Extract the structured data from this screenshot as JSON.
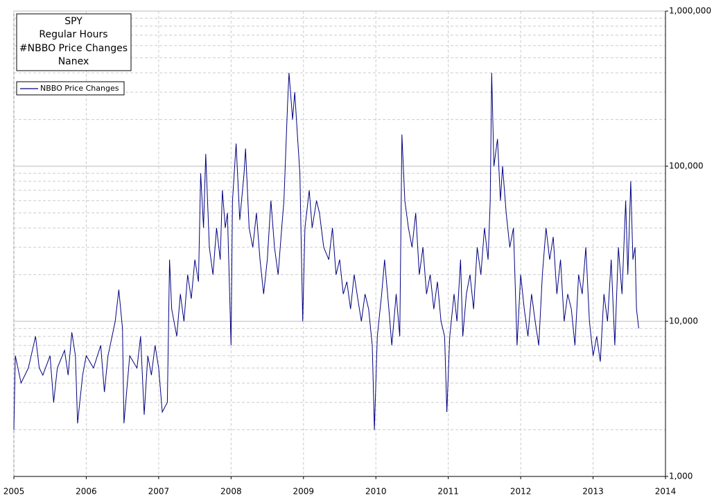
{
  "chart_data": {
    "type": "line",
    "title_lines": [
      "SPY",
      "Regular Hours",
      "#NBBO Price Changes",
      "Nanex"
    ],
    "log_y": true,
    "grid": true,
    "xlim": [
      2005,
      2014
    ],
    "xticks": [
      2005,
      2006,
      2007,
      2008,
      2009,
      2010,
      2011,
      2012,
      2013,
      2014
    ],
    "ylim": [
      1000,
      1000000
    ],
    "yticks": [
      {
        "value": 1000,
        "label": "1,000"
      },
      {
        "value": 10000,
        "label": "10,000"
      },
      {
        "value": 100000,
        "label": "100,000"
      },
      {
        "value": 1000000,
        "label": "1,000,000"
      }
    ],
    "y_minor_ticks": [
      2000,
      3000,
      4000,
      5000,
      6000,
      7000,
      8000,
      9000,
      20000,
      30000,
      40000,
      50000,
      60000,
      70000,
      80000,
      90000,
      200000,
      300000,
      400000,
      500000,
      600000,
      700000,
      800000,
      900000
    ],
    "legend": "top-left",
    "series": [
      {
        "name": "NBBO Price Changes",
        "color": "#000080",
        "x": [
          2005.0,
          2005.02,
          2005.1,
          2005.2,
          2005.3,
          2005.35,
          2005.4,
          2005.5,
          2005.55,
          2005.6,
          2005.7,
          2005.75,
          2005.8,
          2005.85,
          2005.88,
          2005.95,
          2006.0,
          2006.1,
          2006.2,
          2006.25,
          2006.3,
          2006.4,
          2006.45,
          2006.5,
          2006.52,
          2006.6,
          2006.7,
          2006.75,
          2006.8,
          2006.85,
          2006.9,
          2006.95,
          2007.0,
          2007.05,
          2007.12,
          2007.15,
          2007.18,
          2007.25,
          2007.3,
          2007.35,
          2007.4,
          2007.45,
          2007.5,
          2007.55,
          2007.58,
          2007.62,
          2007.65,
          2007.7,
          2007.75,
          2007.8,
          2007.85,
          2007.88,
          2007.92,
          2007.95,
          2008.0,
          2008.02,
          2008.07,
          2008.12,
          2008.18,
          2008.2,
          2008.25,
          2008.3,
          2008.35,
          2008.4,
          2008.45,
          2008.5,
          2008.55,
          2008.6,
          2008.65,
          2008.7,
          2008.73,
          2008.78,
          2008.8,
          2008.85,
          2008.88,
          2008.92,
          2008.95,
          2008.99,
          2009.02,
          2009.08,
          2009.12,
          2009.18,
          2009.22,
          2009.28,
          2009.35,
          2009.4,
          2009.45,
          2009.5,
          2009.55,
          2009.6,
          2009.65,
          2009.7,
          2009.75,
          2009.8,
          2009.85,
          2009.9,
          2009.95,
          2009.98,
          2010.02,
          2010.08,
          2010.12,
          2010.18,
          2010.22,
          2010.28,
          2010.33,
          2010.36,
          2010.4,
          2010.45,
          2010.5,
          2010.55,
          2010.6,
          2010.65,
          2010.7,
          2010.75,
          2010.8,
          2010.85,
          2010.9,
          2010.95,
          2010.98,
          2011.02,
          2011.08,
          2011.12,
          2011.17,
          2011.2,
          2011.25,
          2011.3,
          2011.35,
          2011.4,
          2011.45,
          2011.5,
          2011.55,
          2011.58,
          2011.6,
          2011.63,
          2011.68,
          2011.72,
          2011.75,
          2011.8,
          2011.85,
          2011.9,
          2011.95,
          2012.0,
          2012.05,
          2012.1,
          2012.15,
          2012.2,
          2012.25,
          2012.3,
          2012.35,
          2012.4,
          2012.45,
          2012.5,
          2012.55,
          2012.6,
          2012.65,
          2012.7,
          2012.75,
          2012.8,
          2012.85,
          2012.9,
          2012.95,
          2013.0,
          2013.05,
          2013.1,
          2013.15,
          2013.2,
          2013.25,
          2013.3,
          2013.35,
          2013.4,
          2013.45,
          2013.48,
          2013.52,
          2013.55,
          2013.58,
          2013.6,
          2013.63
        ],
        "values": [
          2000,
          6000,
          4000,
          5000,
          8000,
          5000,
          4500,
          6000,
          3000,
          5000,
          6500,
          4500,
          8500,
          6000,
          2200,
          4500,
          6000,
          5000,
          7000,
          3500,
          6000,
          10000,
          16000,
          9000,
          2200,
          6000,
          5000,
          8000,
          2500,
          6000,
          4500,
          7000,
          5000,
          2600,
          3000,
          25000,
          12000,
          8000,
          15000,
          10000,
          20000,
          14000,
          25000,
          18000,
          90000,
          40000,
          120000,
          30000,
          20000,
          40000,
          25000,
          70000,
          40000,
          50000,
          7000,
          60000,
          140000,
          45000,
          90000,
          130000,
          40000,
          30000,
          50000,
          25000,
          15000,
          25000,
          60000,
          30000,
          20000,
          40000,
          60000,
          250000,
          400000,
          200000,
          300000,
          150000,
          90000,
          10000,
          40000,
          70000,
          40000,
          60000,
          50000,
          30000,
          25000,
          40000,
          20000,
          25000,
          15000,
          18000,
          12000,
          20000,
          14000,
          10000,
          15000,
          12000,
          7000,
          2000,
          8000,
          15000,
          25000,
          12000,
          7000,
          15000,
          8000,
          160000,
          60000,
          40000,
          30000,
          50000,
          20000,
          30000,
          15000,
          20000,
          12000,
          18000,
          10000,
          8000,
          2600,
          8000,
          15000,
          10000,
          25000,
          8000,
          15000,
          20000,
          12000,
          30000,
          20000,
          40000,
          25000,
          60000,
          400000,
          100000,
          150000,
          60000,
          100000,
          50000,
          30000,
          40000,
          7000,
          20000,
          12000,
          8000,
          15000,
          10000,
          7000,
          20000,
          40000,
          25000,
          35000,
          15000,
          25000,
          10000,
          15000,
          12000,
          7000,
          20000,
          15000,
          30000,
          10000,
          6000,
          8000,
          5500,
          15000,
          10000,
          25000,
          7000,
          30000,
          15000,
          60000,
          20000,
          80000,
          25000,
          30000,
          12000,
          9000
        ]
      }
    ]
  }
}
